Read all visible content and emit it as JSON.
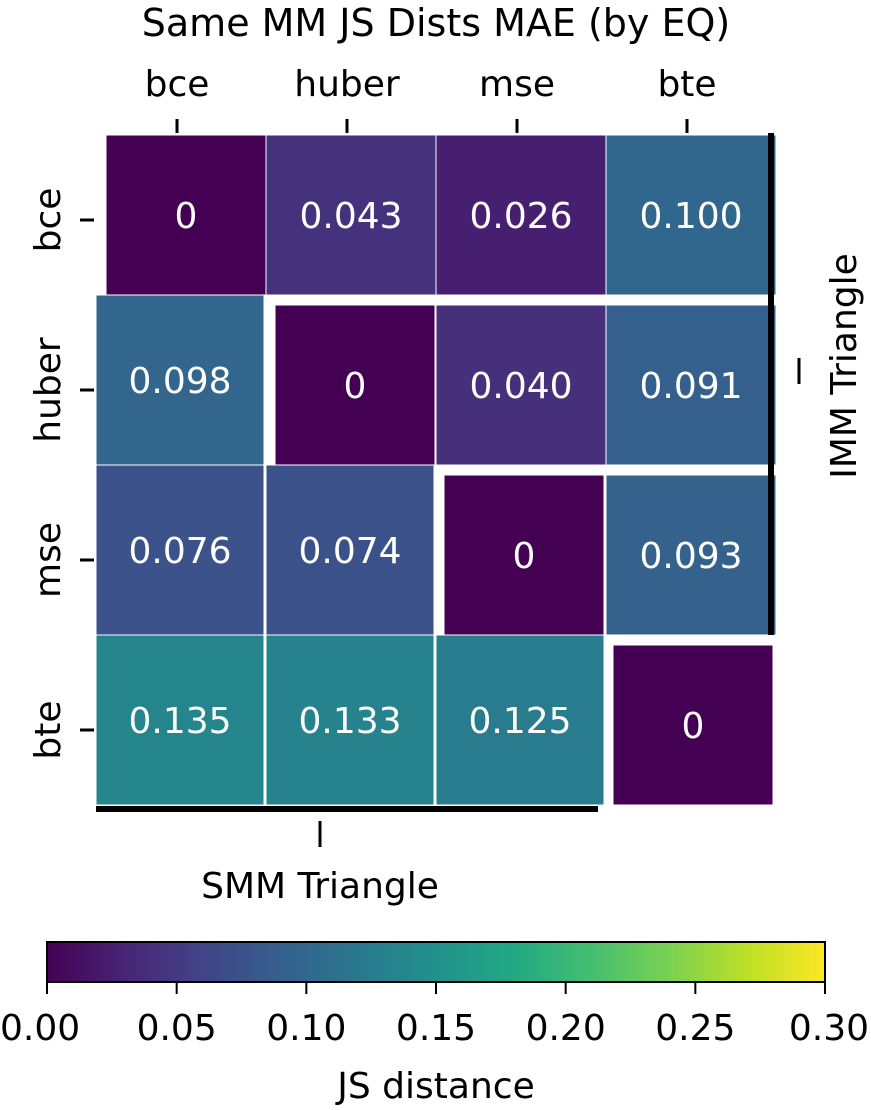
{
  "chart_data": {
    "type": "heatmap",
    "title": "Same MM JS Dists MAE (by EQ)",
    "x_categories": [
      "bce",
      "huber",
      "mse",
      "bte"
    ],
    "y_categories": [
      "bce",
      "huber",
      "mse",
      "bte"
    ],
    "x_tick_position": "top",
    "values": [
      [
        0,
        0.043,
        0.026,
        0.1
      ],
      [
        0.098,
        0,
        0.04,
        0.091
      ],
      [
        0.076,
        0.074,
        0,
        0.093
      ],
      [
        0.135,
        0.133,
        0.125,
        0
      ]
    ],
    "labels": [
      [
        "0",
        "0.043",
        "0.026",
        "0.100"
      ],
      [
        "0.098",
        "0",
        "0.040",
        "0.091"
      ],
      [
        "0.076",
        "0.074",
        "0",
        "0.093"
      ],
      [
        "0.135",
        "0.133",
        "0.125",
        "0"
      ]
    ],
    "lower_triangle_label": "SMM Triangle",
    "upper_triangle_label": "IMM Triangle",
    "colorbar": {
      "label": "JS distance",
      "range": [
        0.0,
        0.3
      ],
      "ticks": [
        0.0,
        0.05,
        0.1,
        0.15,
        0.2,
        0.25,
        0.3
      ],
      "tick_labels": [
        "0.00",
        "0.05",
        "0.10",
        "0.15",
        "0.20",
        "0.25",
        "0.30"
      ],
      "colormap": "viridis",
      "orientation": "horizontal",
      "placement": "bottom"
    }
  }
}
